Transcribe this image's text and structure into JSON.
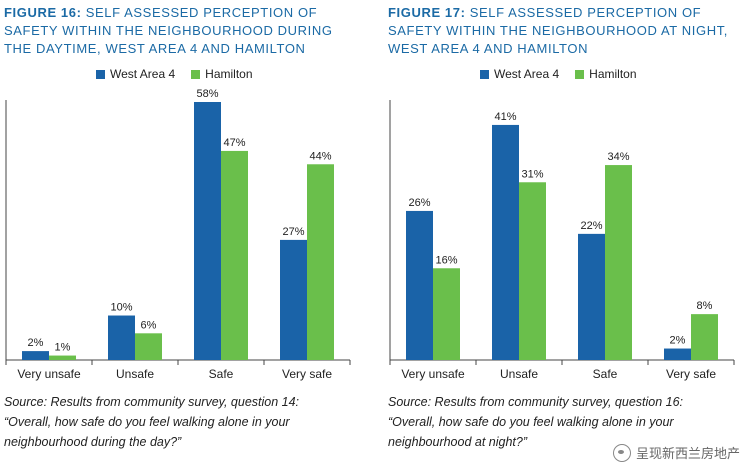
{
  "figures": [
    {
      "title_fig": "FIGURE 16:",
      "title_rest": " SELF ASSESSED PERCEPTION OF SAFETY WITHIN THE NEIGHBOURHOOD DURING THE DAYTIME, WEST AREA 4 AND HAMILTON",
      "source_lines": [
        "Source: Results from community survey, question 14:",
        "“Overall, how safe do you feel walking alone in your",
        "neighbourhood during the day?”"
      ]
    },
    {
      "title_fig": "FIGURE 17:",
      "title_rest": " SELF ASSESSED PERCEPTION OF SAFETY WITHIN THE NEIGHBOURHOOD AT NIGHT, WEST AREA 4 AND HAMILTON",
      "source_lines": [
        "Source: Results from community survey, question 16:",
        "“Overall, how safe do you feel walking alone in your",
        "neighbourhood at night?”"
      ]
    }
  ],
  "colors": {
    "west_area_4": "#1a63a8",
    "hamilton": "#6abf4b"
  },
  "chart_data": [
    {
      "type": "bar",
      "categories": [
        "Very unsafe",
        "Unsafe",
        "Safe",
        "Very safe"
      ],
      "series": [
        {
          "name": "West Area 4",
          "values": [
            2,
            10,
            58,
            27
          ],
          "labels": [
            "2%",
            "10%",
            "58%",
            "27%"
          ]
        },
        {
          "name": "Hamilton",
          "values": [
            1,
            6,
            47,
            44
          ],
          "labels": [
            "1%",
            "6%",
            "47%",
            "44%"
          ]
        }
      ],
      "ylim": [
        0,
        58
      ],
      "grid": false,
      "legend": "top"
    },
    {
      "type": "bar",
      "categories": [
        "Very unsafe",
        "Unsafe",
        "Safe",
        "Very safe"
      ],
      "series": [
        {
          "name": "West Area 4",
          "values": [
            26,
            41,
            22,
            2
          ],
          "labels": [
            "26%",
            "41%",
            "22%",
            "2%"
          ]
        },
        {
          "name": "Hamilton",
          "values": [
            16,
            31,
            34,
            8
          ],
          "labels": [
            "16%",
            "31%",
            "34%",
            "8%"
          ]
        }
      ],
      "ylim": [
        0,
        45
      ],
      "grid": false,
      "legend": "top"
    }
  ],
  "watermark": "呈现新西兰房地产"
}
